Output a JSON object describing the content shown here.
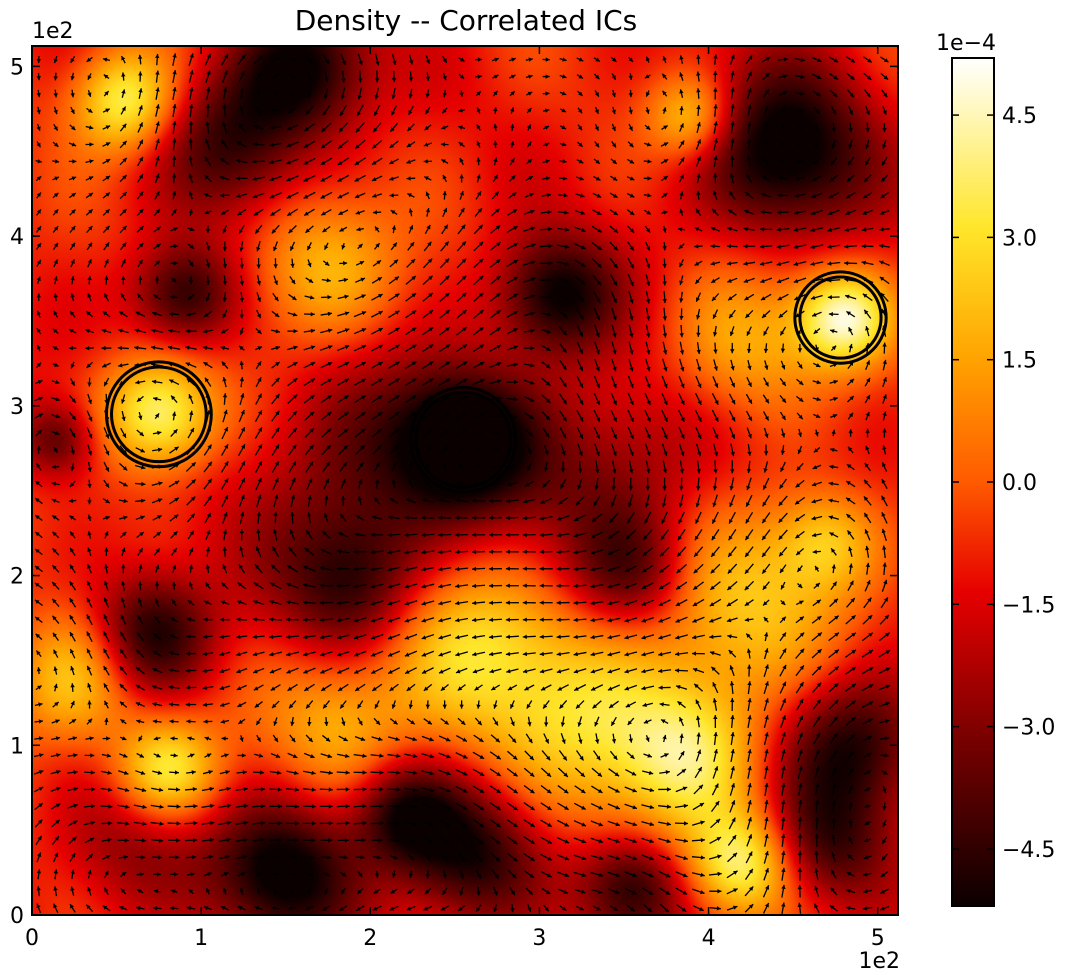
{
  "chart_data": {
    "type": "heatmap",
    "title": "Density -- Correlated ICs",
    "xlabel": "",
    "ylabel": "",
    "xlim": [
      0,
      512
    ],
    "ylim": [
      0,
      512
    ],
    "x_offset_label": "1e2",
    "y_offset_label": "1e2",
    "x_tick_values": [
      0,
      100,
      200,
      300,
      400,
      500
    ],
    "x_tick_labels": [
      "0",
      "1",
      "2",
      "3",
      "4",
      "5"
    ],
    "y_tick_values": [
      0,
      100,
      200,
      300,
      400,
      500
    ],
    "y_tick_labels": [
      "0",
      "1",
      "2",
      "3",
      "4",
      "5"
    ],
    "colorscale": "hot",
    "overlay": "velocity-quiver",
    "colorbar": {
      "offset_label": "1e−4",
      "range": [
        -5.2,
        5.2
      ],
      "tick_values": [
        4.5,
        3.0,
        1.5,
        0.0,
        -1.5,
        -3.0,
        -4.5
      ],
      "tick_labels": [
        "4.5",
        "3.0",
        "1.5",
        "0.0",
        "−1.5",
        "−3.0",
        "−4.5"
      ]
    },
    "blobs": [
      {
        "x": 55,
        "y": 480,
        "value": 4.8,
        "r": 22
      },
      {
        "x": 120,
        "y": 455,
        "value": -3.5,
        "r": 30
      },
      {
        "x": 160,
        "y": 500,
        "value": -4.5,
        "r": 28
      },
      {
        "x": 390,
        "y": 470,
        "value": 3.5,
        "r": 18
      },
      {
        "x": 445,
        "y": 450,
        "value": -5.0,
        "r": 36
      },
      {
        "x": 90,
        "y": 365,
        "value": -4.2,
        "r": 22
      },
      {
        "x": 170,
        "y": 380,
        "value": 3.0,
        "r": 32
      },
      {
        "x": 310,
        "y": 365,
        "value": -4.6,
        "r": 25
      },
      {
        "x": 480,
        "y": 352,
        "value": 5.2,
        "r": 20
      },
      {
        "x": 420,
        "y": 335,
        "value": 2.8,
        "r": 32
      },
      {
        "x": 75,
        "y": 295,
        "value": 5.2,
        "r": 24
      },
      {
        "x": 15,
        "y": 280,
        "value": -3.0,
        "r": 16
      },
      {
        "x": 255,
        "y": 280,
        "value": -5.2,
        "r": 28
      },
      {
        "x": 200,
        "y": 260,
        "value": -2.5,
        "r": 48
      },
      {
        "x": 350,
        "y": 270,
        "value": -2.0,
        "r": 40
      },
      {
        "x": 300,
        "y": 225,
        "value": -1.0,
        "r": 40
      },
      {
        "x": 190,
        "y": 195,
        "value": -3.5,
        "r": 30
      },
      {
        "x": 355,
        "y": 200,
        "value": -2.8,
        "r": 25
      },
      {
        "x": 70,
        "y": 165,
        "value": -4.5,
        "r": 26
      },
      {
        "x": 25,
        "y": 140,
        "value": 3.5,
        "r": 28
      },
      {
        "x": 260,
        "y": 160,
        "value": 3.5,
        "r": 42
      },
      {
        "x": 420,
        "y": 180,
        "value": 3.0,
        "r": 40
      },
      {
        "x": 470,
        "y": 220,
        "value": 3.0,
        "r": 22
      },
      {
        "x": 80,
        "y": 85,
        "value": 4.5,
        "r": 22
      },
      {
        "x": 180,
        "y": 115,
        "value": 2.5,
        "r": 30
      },
      {
        "x": 330,
        "y": 110,
        "value": 3.0,
        "r": 45
      },
      {
        "x": 390,
        "y": 95,
        "value": 3.5,
        "r": 30
      },
      {
        "x": 485,
        "y": 100,
        "value": -4.0,
        "r": 30
      },
      {
        "x": 150,
        "y": 25,
        "value": -4.8,
        "r": 30
      },
      {
        "x": 260,
        "y": 35,
        "value": -4.2,
        "r": 30
      },
      {
        "x": 420,
        "y": 30,
        "value": 4.6,
        "r": 22
      },
      {
        "x": 355,
        "y": 15,
        "value": -4.0,
        "r": 22
      },
      {
        "x": 470,
        "y": 40,
        "value": -3.0,
        "r": 26
      },
      {
        "x": 220,
        "y": 60,
        "value": -3.8,
        "r": 22
      },
      {
        "x": 60,
        "y": 40,
        "value": -2.0,
        "r": 30
      }
    ],
    "circled_features": [
      {
        "x": 75,
        "y": 295,
        "r": 28
      },
      {
        "x": 255,
        "y": 280,
        "r": 28
      },
      {
        "x": 478,
        "y": 352,
        "r": 24
      }
    ]
  }
}
